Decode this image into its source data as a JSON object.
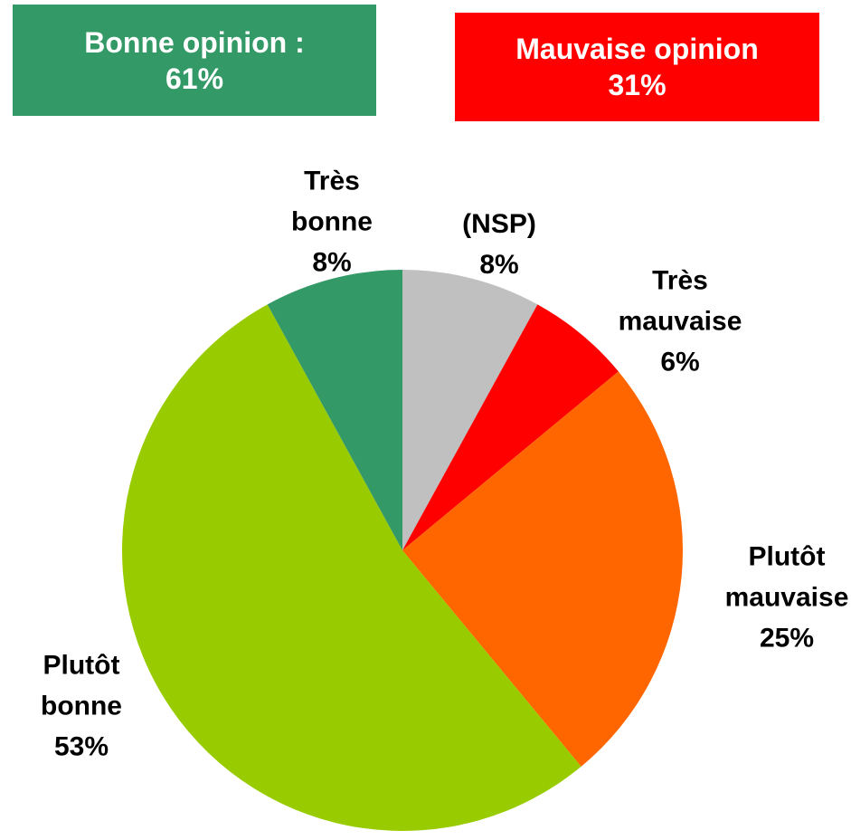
{
  "chart_data": {
    "type": "pie",
    "categories": [
      "(NSP)",
      "Très mauvaise",
      "Plutôt mauvaise",
      "Plutôt bonne",
      "Très bonne"
    ],
    "values": [
      8,
      6,
      25,
      53,
      8
    ],
    "value_labels": [
      "8%",
      "6%",
      "25%",
      "53%",
      "8%"
    ],
    "colors": [
      "#c0c0c0",
      "#ff0000",
      "#ff6600",
      "#99cc00",
      "#339966"
    ],
    "annotations": [
      {
        "text": "Bonne opinion :",
        "value_label": "61%",
        "color": "#339966"
      },
      {
        "text": "Mauvaise opinion",
        "value_label": "31%",
        "color": "#ff0000"
      }
    ]
  }
}
